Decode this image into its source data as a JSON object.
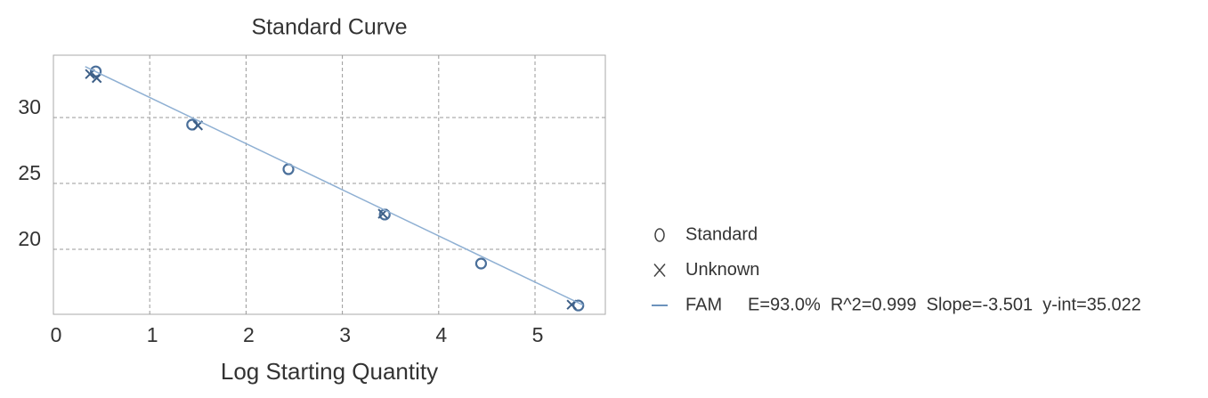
{
  "chart_data": {
    "type": "scatter",
    "title": "Standard Curve",
    "x_label": "Log Starting Quantity",
    "xlim": [
      0,
      5.73
    ],
    "xticks": [
      0,
      1,
      2,
      3,
      4,
      5
    ],
    "ylim": [
      15.07,
      34.73
    ],
    "yticks": [
      20,
      25,
      30
    ],
    "grid": true,
    "series": [
      {
        "name": "Standard",
        "marker": "circle",
        "color": "#4a6f9a",
        "x": [
          0.44,
          1.44,
          2.44,
          3.44,
          4.44,
          5.45
        ],
        "values": [
          33.5,
          29.46,
          26.08,
          22.64,
          18.92,
          15.74
        ]
      },
      {
        "name": "Unknown",
        "marker": "cross",
        "color": "#3d5f87",
        "x": [
          0.38,
          0.45,
          1.5,
          3.42,
          5.38
        ],
        "values": [
          33.3,
          33.0,
          29.4,
          22.7,
          15.8
        ]
      },
      {
        "name": "FAM",
        "marker": "line",
        "color": "#8fb0d3",
        "x": [
          0.33,
          5.5
        ],
        "values": [
          33.867,
          15.766
        ]
      }
    ],
    "fit_stats": "E=93.0%  R^2=0.999  Slope=-3.501  y-int=35.022"
  }
}
